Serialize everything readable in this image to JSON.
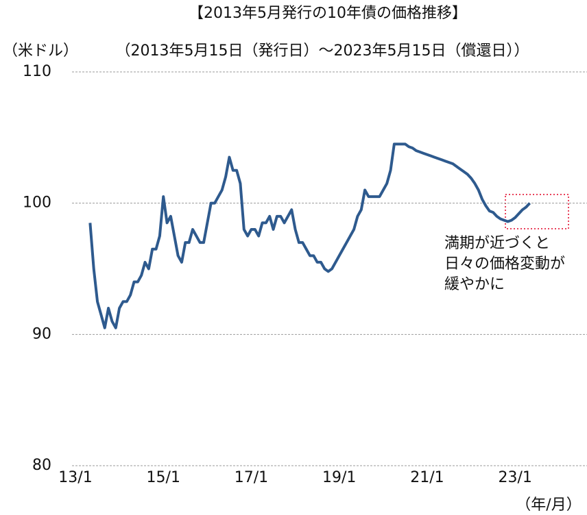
{
  "chart_data": {
    "type": "line",
    "title": "【2013年5月発行の10年債の価格推移】",
    "subtitle": "（2013年5月15日（発行日）～2023年5月15日（償還日））",
    "y_label": "（米ドル）",
    "x_label": "（年/月）",
    "annotation": [
      "満期が近づくと",
      "日々の価格変動が",
      "緩やかに"
    ],
    "annotation_color": "#e8405a",
    "grid": true,
    "ylim": [
      80,
      110
    ],
    "yticks": [
      80,
      90,
      100,
      110
    ],
    "xlim": [
      "13/1",
      "24/3"
    ],
    "xticks": [
      "13/1",
      "15/1",
      "17/1",
      "19/1",
      "21/1",
      "23/1"
    ],
    "x": [
      "13/5",
      "13/6",
      "13/7",
      "13/8",
      "13/9",
      "13/10",
      "13/11",
      "13/12",
      "14/1",
      "14/2",
      "14/3",
      "14/4",
      "14/5",
      "14/6",
      "14/7",
      "14/8",
      "14/9",
      "14/10",
      "14/11",
      "14/12",
      "15/1",
      "15/2",
      "15/3",
      "15/4",
      "15/5",
      "15/6",
      "15/7",
      "15/8",
      "15/9",
      "15/10",
      "15/11",
      "15/12",
      "16/1",
      "16/2",
      "16/3",
      "16/4",
      "16/5",
      "16/6",
      "16/7",
      "16/8",
      "16/9",
      "16/10",
      "16/11",
      "16/12",
      "17/1",
      "17/2",
      "17/3",
      "17/4",
      "17/5",
      "17/6",
      "17/7",
      "17/8",
      "17/9",
      "17/10",
      "17/11",
      "17/12",
      "18/1",
      "18/2",
      "18/3",
      "18/4",
      "18/5",
      "18/6",
      "18/7",
      "18/8",
      "18/9",
      "18/10",
      "18/11",
      "18/12",
      "19/1",
      "19/2",
      "19/3",
      "19/4",
      "19/5",
      "19/6",
      "19/7",
      "19/8",
      "19/9",
      "19/10",
      "19/11",
      "19/12",
      "20/1",
      "20/2",
      "20/3",
      "20/4",
      "20/5",
      "20/6",
      "20/7",
      "20/8",
      "20/9",
      "20/10",
      "20/11",
      "20/12",
      "21/1",
      "21/2",
      "21/3",
      "21/4",
      "21/5",
      "21/6",
      "21/7",
      "21/8",
      "21/9",
      "21/10",
      "21/11",
      "21/12",
      "22/1",
      "22/2",
      "22/3",
      "22/4",
      "22/5",
      "22/6",
      "22/7",
      "22/8",
      "22/9",
      "22/10",
      "22/11",
      "22/12",
      "23/1",
      "23/2",
      "23/3",
      "23/4",
      "23/5"
    ],
    "series": [
      {
        "color": "#2e5a8e",
        "values": [
          98.5,
          95,
          92.5,
          91.5,
          90.5,
          92,
          91,
          90.5,
          92,
          92.5,
          92.5,
          93,
          94,
          94,
          94.5,
          95.5,
          95,
          96.5,
          96.5,
          97.5,
          100.5,
          98.5,
          99,
          97.5,
          96,
          95.5,
          97,
          97,
          98,
          97.5,
          97,
          97,
          98.5,
          100,
          100,
          100.5,
          101,
          102,
          103.5,
          102.5,
          102.5,
          101.5,
          98,
          97.5,
          98,
          98,
          97.5,
          98.5,
          98.5,
          99,
          98,
          99,
          99,
          98.5,
          99,
          99.5,
          98,
          97,
          97,
          96.5,
          96,
          96,
          95.5,
          95.5,
          95,
          94.8,
          95,
          95.5,
          96,
          96.5,
          97,
          97.5,
          98,
          99,
          99.5,
          101,
          100.5,
          100.5,
          100.5,
          100.5,
          101,
          101.5,
          102.5,
          104.5,
          104.5,
          104.5,
          104.5,
          104.3,
          104.2,
          104,
          103.9,
          103.8,
          103.7,
          103.6,
          103.5,
          103.4,
          103.3,
          103.2,
          103.1,
          103,
          102.8,
          102.6,
          102.4,
          102.2,
          101.9,
          101.5,
          101,
          100.3,
          99.8,
          99.4,
          99.3,
          99,
          98.8,
          98.7,
          98.6,
          98.7,
          98.9,
          99.2,
          99.5,
          99.7,
          100
        ]
      }
    ]
  }
}
